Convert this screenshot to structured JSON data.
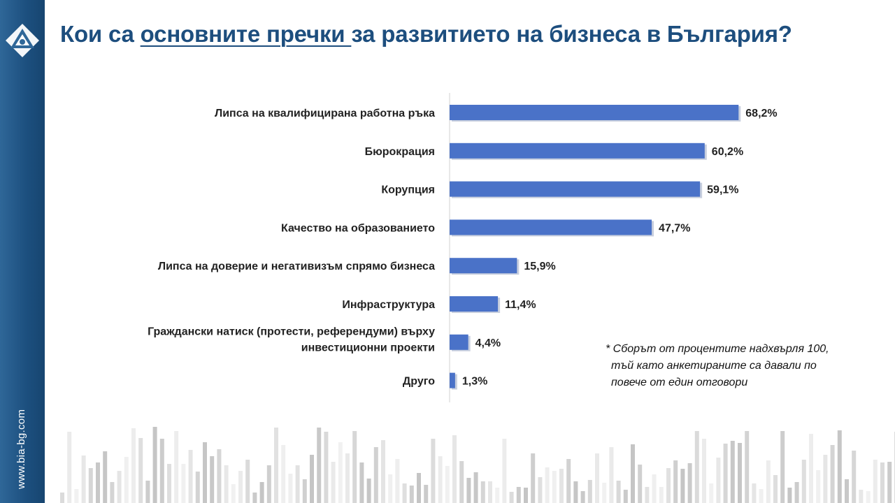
{
  "slide": {
    "title_before": "Кои са ",
    "title_underlined": "основните пречки ",
    "title_after": "за развитието на бизнеса в България?",
    "site_url": "www.bia-bg.com",
    "footnote": [
      "* Сборът от процентите надхвърля 100,",
      "тъй като анкетираните са давали по",
      "повече от един отговори"
    ]
  },
  "colors": {
    "bar": "#4a72c8",
    "title": "#1d4e7e",
    "sidebar": "#1c4f7e"
  },
  "chart_data": {
    "type": "bar",
    "orientation": "horizontal",
    "title": "",
    "xlabel": "",
    "ylabel": "",
    "categories": [
      [
        "Липса на квалифицирана работна ръка"
      ],
      [
        "Бюрокрация"
      ],
      [
        "Корупция"
      ],
      [
        "Качество на образованието"
      ],
      [
        "Липса на доверие и негативизъм спрямо бизнеса"
      ],
      [
        "Инфраструктура"
      ],
      [
        "Граждански натиск (протести, референдуми) върху",
        "инвестиционни проекти"
      ],
      [
        "Друго"
      ]
    ],
    "values": [
      68.2,
      60.2,
      59.1,
      47.7,
      15.9,
      11.4,
      4.4,
      1.3
    ],
    "value_labels": [
      "68,2%",
      "60,2%",
      "59,1%",
      "47,7%",
      "15,9%",
      "11,4%",
      "4,4%",
      "1,3%"
    ],
    "xlim": [
      0,
      70
    ],
    "grid": false,
    "legend": "none"
  }
}
